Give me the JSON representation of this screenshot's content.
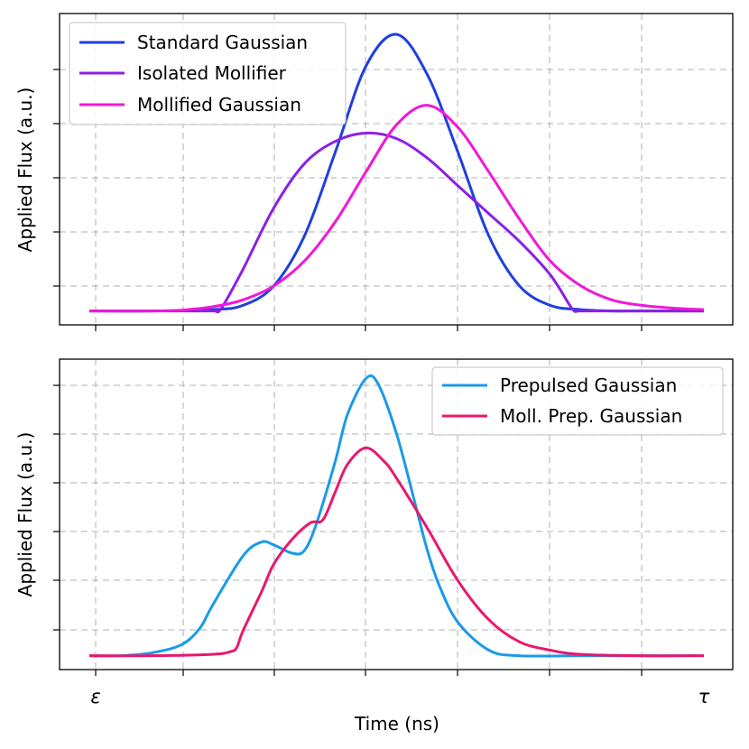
{
  "chart_data": [
    {
      "type": "line",
      "panel": "top",
      "ylabel": "Applied Flux (a.u.)",
      "xlabel": "",
      "grid": true,
      "legend_position": "top-left",
      "xlim": [
        0,
        1
      ],
      "ylim": [
        -0.05,
        1.07
      ],
      "x_tick_labels": [
        "ε",
        "τ"
      ],
      "series": [
        {
          "name": "Standard Gaussian",
          "color": "#1f3fe0",
          "x": [
            0.0,
            0.1,
            0.2,
            0.25,
            0.3,
            0.35,
            0.4,
            0.45,
            0.5,
            0.55,
            0.6,
            0.65,
            0.7,
            0.75,
            0.8,
            0.85,
            0.9,
            1.0
          ],
          "y": [
            0.0,
            0.0,
            0.005,
            0.02,
            0.09,
            0.27,
            0.57,
            0.88,
            0.995,
            0.85,
            0.57,
            0.27,
            0.09,
            0.02,
            0.005,
            0.0,
            0.0,
            0.0
          ]
        },
        {
          "name": "Isolated Mollifier",
          "color": "#8a20e8",
          "x": [
            0.0,
            0.1,
            0.2,
            0.205,
            0.215,
            0.25,
            0.3,
            0.35,
            0.4,
            0.45,
            0.5,
            0.55,
            0.6,
            0.65,
            0.7,
            0.75,
            0.785,
            0.795,
            0.8,
            0.9,
            1.0
          ],
          "y": [
            0.0,
            0.0,
            0.0,
            0.0,
            0.01,
            0.15,
            0.37,
            0.53,
            0.61,
            0.64,
            0.62,
            0.55,
            0.45,
            0.35,
            0.25,
            0.13,
            0.01,
            0.0,
            0.0,
            0.0,
            0.0
          ]
        },
        {
          "name": "Mollified Gaussian",
          "color": "#f018d8",
          "x": [
            0.0,
            0.1,
            0.15,
            0.2,
            0.25,
            0.3,
            0.35,
            0.4,
            0.45,
            0.5,
            0.55,
            0.6,
            0.65,
            0.7,
            0.75,
            0.8,
            0.85,
            0.9,
            0.95,
            1.0
          ],
          "y": [
            0.0,
            0.0,
            0.003,
            0.015,
            0.04,
            0.09,
            0.18,
            0.32,
            0.5,
            0.67,
            0.74,
            0.66,
            0.5,
            0.33,
            0.18,
            0.09,
            0.04,
            0.02,
            0.01,
            0.005
          ]
        }
      ]
    },
    {
      "type": "line",
      "panel": "bottom",
      "ylabel": "Applied Flux (a.u.)",
      "xlabel": "Time (ns)",
      "grid": true,
      "legend_position": "top-right",
      "xlim": [
        0,
        1
      ],
      "ylim": [
        -0.05,
        1.07
      ],
      "x_tick_labels": [
        "ε",
        "τ"
      ],
      "series": [
        {
          "name": "Prepulsed Gaussian",
          "color": "#1a9ae8",
          "x": [
            0.0,
            0.05,
            0.1,
            0.15,
            0.18,
            0.2,
            0.25,
            0.28,
            0.3,
            0.33,
            0.35,
            0.37,
            0.4,
            0.42,
            0.45,
            0.47,
            0.5,
            0.53,
            0.55,
            0.57,
            0.6,
            0.65,
            0.7,
            0.8,
            0.9,
            1.0
          ],
          "y": [
            0.0,
            0.0,
            0.01,
            0.04,
            0.1,
            0.18,
            0.36,
            0.41,
            0.4,
            0.37,
            0.38,
            0.48,
            0.7,
            0.87,
            1.0,
            0.98,
            0.8,
            0.55,
            0.38,
            0.25,
            0.12,
            0.02,
            0.0,
            0.0,
            0.0,
            0.0
          ]
        },
        {
          "name": "Moll. Prep. Gaussian",
          "color": "#e8186e",
          "x": [
            0.0,
            0.1,
            0.2,
            0.23,
            0.24,
            0.25,
            0.28,
            0.3,
            0.33,
            0.36,
            0.38,
            0.4,
            0.42,
            0.45,
            0.48,
            0.5,
            0.55,
            0.6,
            0.65,
            0.7,
            0.75,
            0.8,
            0.9,
            1.0
          ],
          "y": [
            0.0,
            0.0,
            0.005,
            0.015,
            0.03,
            0.09,
            0.23,
            0.33,
            0.42,
            0.48,
            0.49,
            0.59,
            0.69,
            0.75,
            0.7,
            0.64,
            0.46,
            0.27,
            0.13,
            0.05,
            0.02,
            0.005,
            0.0,
            0.0
          ]
        }
      ]
    }
  ]
}
